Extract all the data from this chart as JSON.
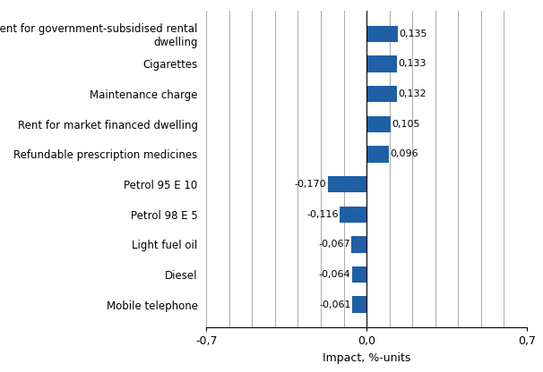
{
  "categories": [
    "Mobile telephone",
    "Diesel",
    "Light fuel oil",
    "Petrol 98 E 5",
    "Petrol 95 E 10",
    "Refundable prescription medicines",
    "Rent for market financed dwelling",
    "Maintenance charge",
    "Cigarettes",
    "Rent for government-subsidised rental\ndwelling"
  ],
  "values": [
    -0.061,
    -0.064,
    -0.067,
    -0.116,
    -0.17,
    0.096,
    0.105,
    0.132,
    0.133,
    0.135
  ],
  "bar_color": "#1F5FA6",
  "xlabel": "Impact, %-units",
  "xlim": [
    -0.7,
    0.7
  ],
  "xticks_grid": [
    -0.7,
    -0.6,
    -0.5,
    -0.4,
    -0.3,
    -0.2,
    -0.1,
    0.0,
    0.1,
    0.2,
    0.3,
    0.4,
    0.5,
    0.6,
    0.7
  ],
  "xtick_labels_sparse": {
    "-0.7": "-0,7",
    "0.0": "0,0",
    "0.7": "0,7"
  },
  "value_labels": [
    "-0,061",
    "-0,064",
    "-0,067",
    "-0,116",
    "-0,170",
    "0,096",
    "0,105",
    "0,132",
    "0,133",
    "0,135"
  ],
  "background_color": "#ffffff",
  "grid_color": "#aaaaaa"
}
